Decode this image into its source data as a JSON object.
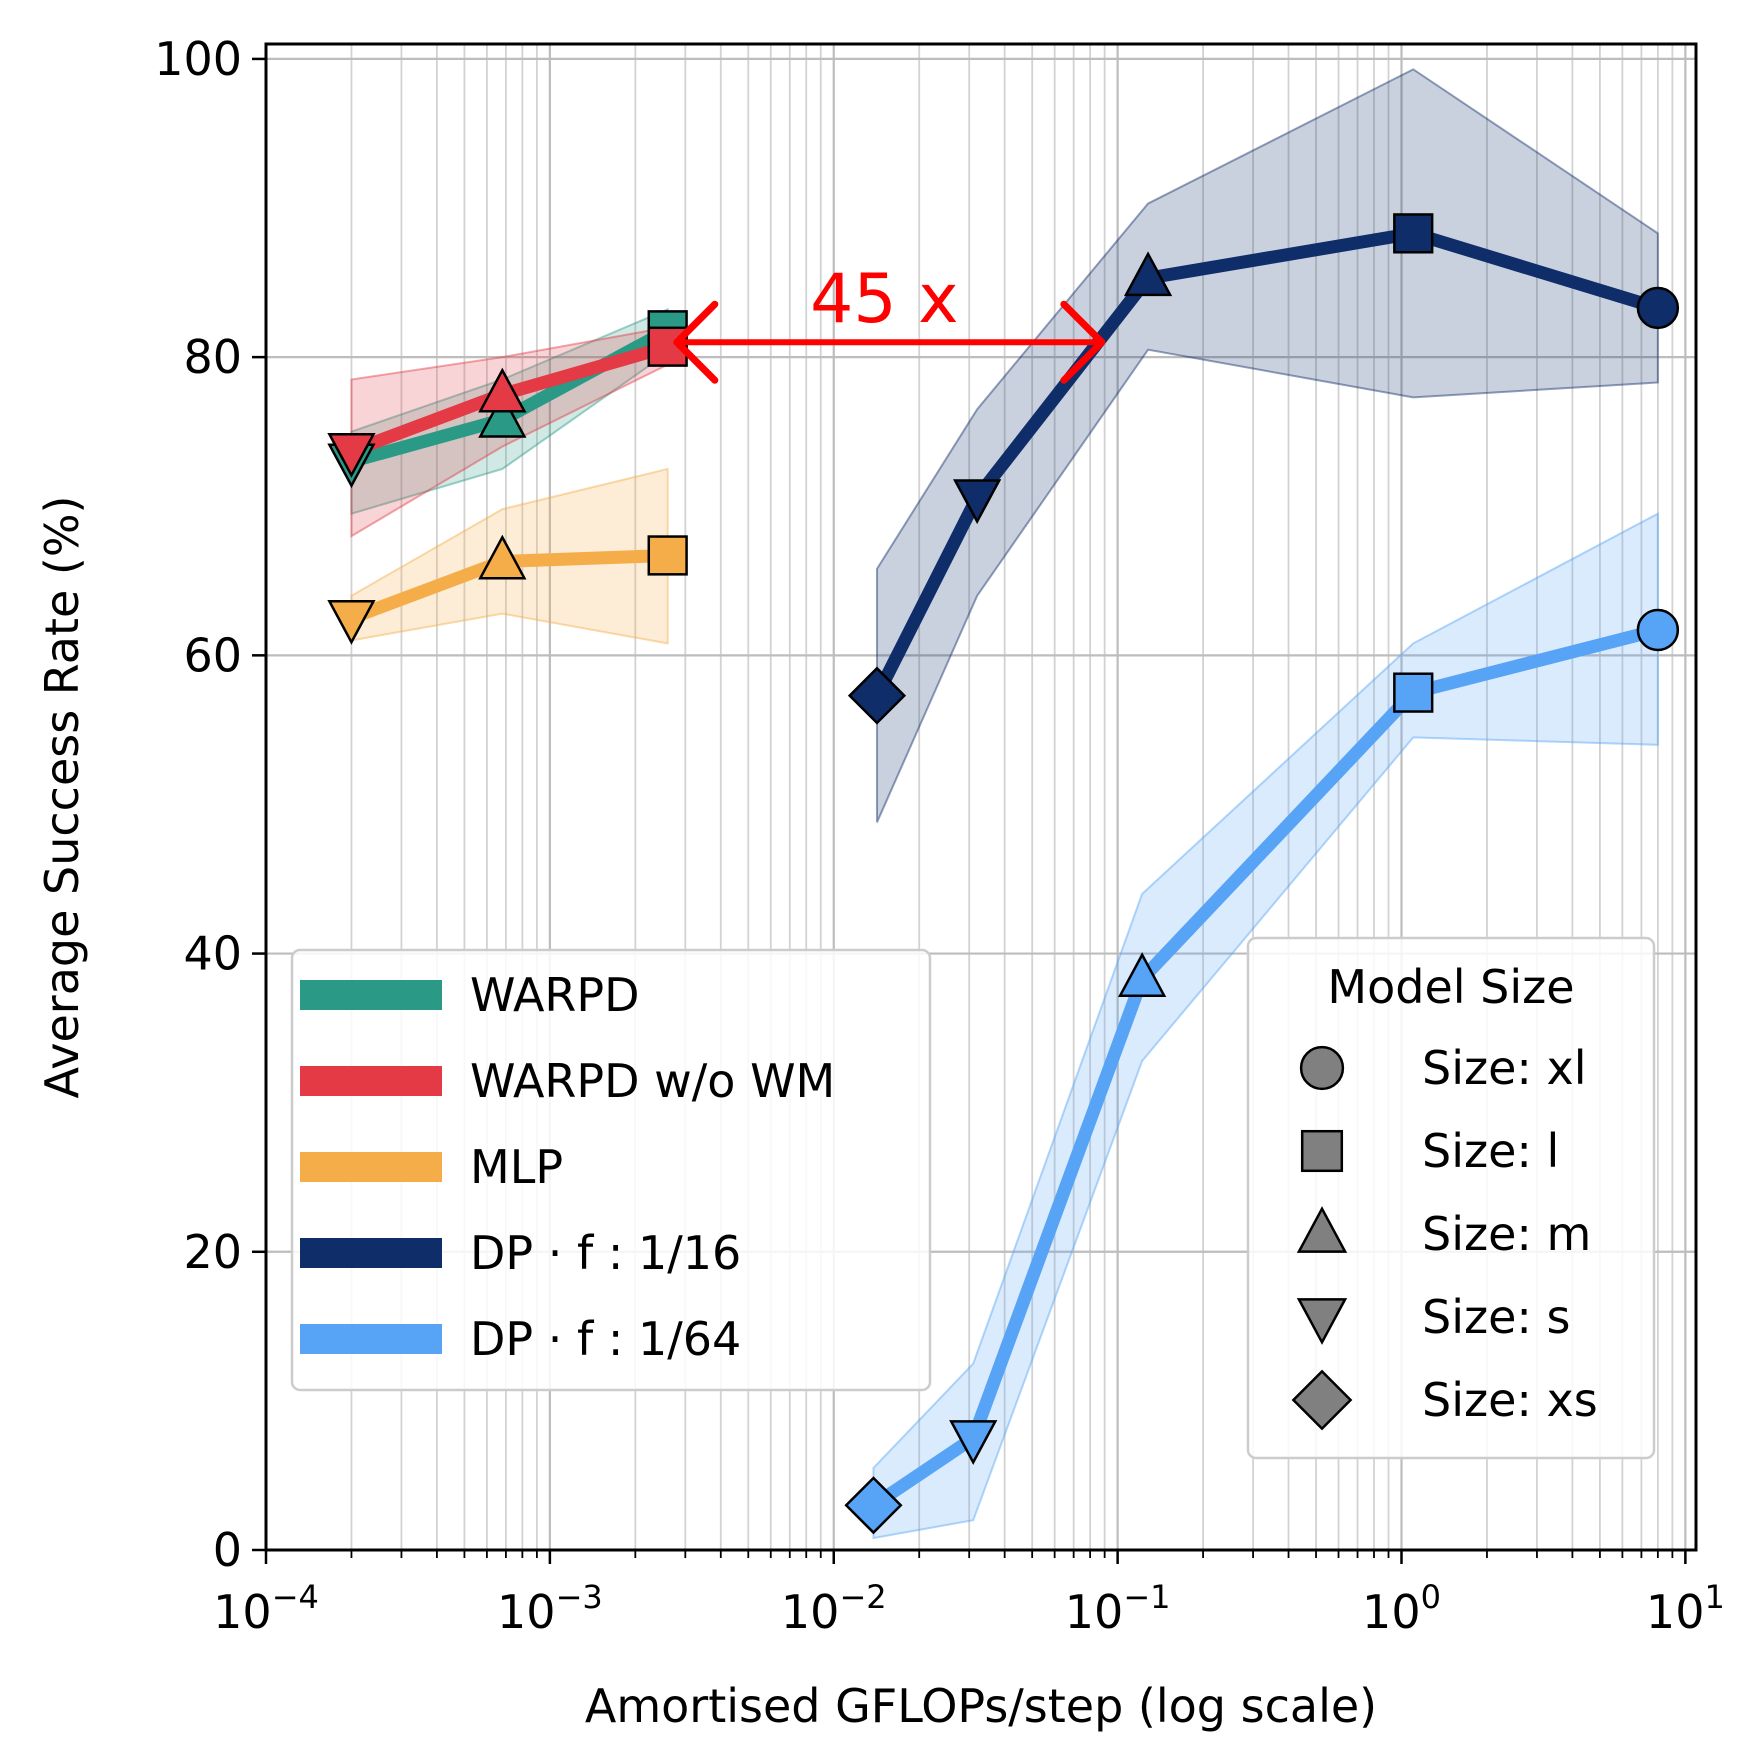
{
  "chart_data": {
    "type": "line",
    "xscale": "log",
    "xlabel": "Amortised GFLOPs/step (log scale)",
    "ylabel": "Average Success Rate (%)",
    "xlim": [
      0.0001,
      10.9
    ],
    "ylim": [
      0,
      101
    ],
    "yticks": [
      0,
      20,
      40,
      60,
      80,
      100
    ],
    "ytick_labels": [
      "0",
      "20",
      "40",
      "60",
      "80",
      "100"
    ],
    "xticks": [
      {
        "value": 0.0001,
        "base": "10",
        "exp": "−4"
      },
      {
        "value": 0.001,
        "base": "10",
        "exp": "−3"
      },
      {
        "value": 0.01,
        "base": "10",
        "exp": "−2"
      },
      {
        "value": 0.1,
        "base": "10",
        "exp": "−1"
      },
      {
        "value": 1,
        "base": "10",
        "exp": "0"
      },
      {
        "value": 10,
        "base": "10",
        "exp": "1"
      }
    ],
    "grid": true,
    "series": [
      {
        "name": "WARPD",
        "color": "#2a9a86",
        "points": [
          {
            "x": 0.0002,
            "y": 73.0,
            "lo": 69.5,
            "hi": 75.0,
            "marker": "tri-down"
          },
          {
            "x": 0.00068,
            "y": 75.8,
            "lo": 72.5,
            "hi": 78.5,
            "marker": "tri-up"
          },
          {
            "x": 0.0026,
            "y": 81.8,
            "lo": 80.3,
            "hi": 83.2,
            "marker": "square"
          }
        ]
      },
      {
        "name": "WARPD w/o WM",
        "color": "#e33a45",
        "points": [
          {
            "x": 0.0002,
            "y": 73.7,
            "lo": 68.0,
            "hi": 78.5,
            "marker": "tri-down"
          },
          {
            "x": 0.00068,
            "y": 77.5,
            "lo": 74.0,
            "hi": 80.0,
            "marker": "tri-up"
          },
          {
            "x": 0.0026,
            "y": 80.7,
            "lo": 79.5,
            "hi": 82.0,
            "marker": "square"
          }
        ]
      },
      {
        "name": "MLP",
        "color": "#f5ad49",
        "points": [
          {
            "x": 0.0002,
            "y": 62.5,
            "lo": 61.0,
            "hi": 64.0,
            "marker": "tri-down"
          },
          {
            "x": 0.00068,
            "y": 66.3,
            "lo": 62.8,
            "hi": 69.8,
            "marker": "tri-up"
          },
          {
            "x": 0.0026,
            "y": 66.7,
            "lo": 60.8,
            "hi": 72.5,
            "marker": "square"
          }
        ]
      },
      {
        "name": "DP · f : 1/16",
        "color": "#0f2d69",
        "points": [
          {
            "x": 0.0142,
            "y": 57.3,
            "lo": 48.8,
            "hi": 65.8,
            "marker": "diamond"
          },
          {
            "x": 0.032,
            "y": 70.6,
            "lo": 64.0,
            "hi": 76.5,
            "marker": "tri-down"
          },
          {
            "x": 0.128,
            "y": 85.3,
            "lo": 80.5,
            "hi": 90.3,
            "marker": "tri-up"
          },
          {
            "x": 1.1,
            "y": 88.3,
            "lo": 77.3,
            "hi": 99.3,
            "marker": "square"
          },
          {
            "x": 8.0,
            "y": 83.3,
            "lo": 78.3,
            "hi": 88.3,
            "marker": "circle"
          }
        ]
      },
      {
        "name": "DP · f : 1/64",
        "color": "#57a3f5",
        "points": [
          {
            "x": 0.0138,
            "y": 3.0,
            "lo": 0.8,
            "hi": 5.5,
            "marker": "diamond"
          },
          {
            "x": 0.031,
            "y": 7.5,
            "lo": 2.0,
            "hi": 12.5,
            "marker": "tri-down"
          },
          {
            "x": 0.122,
            "y": 38.3,
            "lo": 32.8,
            "hi": 44.0,
            "marker": "tri-up"
          },
          {
            "x": 1.1,
            "y": 57.5,
            "lo": 54.5,
            "hi": 60.8,
            "marker": "square"
          },
          {
            "x": 8.0,
            "y": 61.7,
            "lo": 54.0,
            "hi": 69.5,
            "marker": "circle"
          }
        ]
      }
    ],
    "annotation": {
      "text": "45 x",
      "color": "#ff0000",
      "from": {
        "x": 0.0028,
        "y": 81.0
      },
      "to": {
        "x": 0.088,
        "y": 81.0
      }
    },
    "legend_series": {
      "placement": "lower-left",
      "entries": [
        {
          "label": "WARPD",
          "color": "#2a9a86"
        },
        {
          "label": "WARPD w/o WM",
          "color": "#e33a45"
        },
        {
          "label": "MLP",
          "color": "#f5ad49"
        },
        {
          "label": "DP · f : 1/16",
          "color": "#0f2d69"
        },
        {
          "label": "DP · f : 1/64",
          "color": "#57a3f5"
        }
      ]
    },
    "legend_markers": {
      "placement": "lower-right",
      "title": "Model Size",
      "entries": [
        {
          "label": "Size: xl",
          "marker": "circle"
        },
        {
          "label": "Size: l",
          "marker": "square"
        },
        {
          "label": "Size: m",
          "marker": "tri-up"
        },
        {
          "label": "Size: s",
          "marker": "tri-down"
        },
        {
          "label": "Size: xs",
          "marker": "diamond"
        }
      ]
    }
  }
}
